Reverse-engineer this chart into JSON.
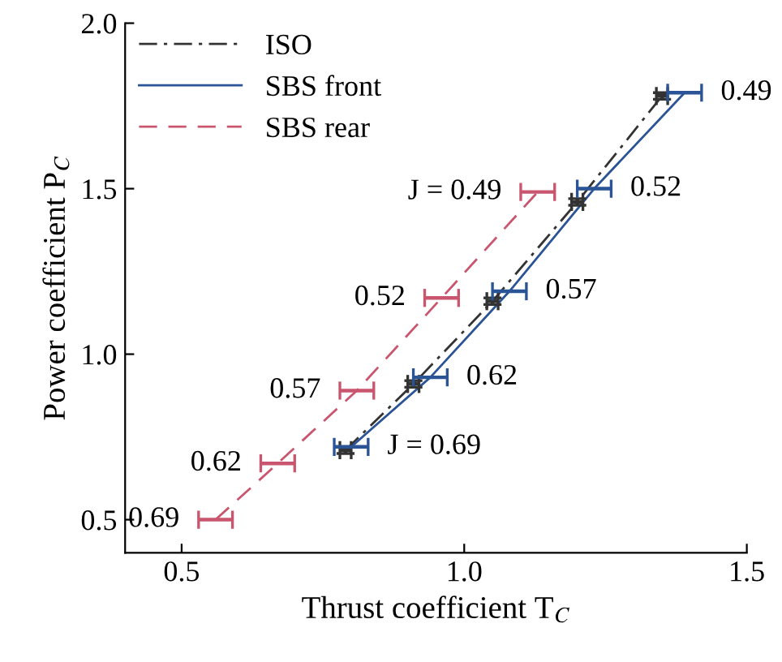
{
  "chart_data": {
    "type": "line",
    "xlabel": "Thrust coefficient T$_{C}$",
    "ylabel": "Power coefficient P$_{C}$",
    "xlim": [
      0.4,
      1.5
    ],
    "xticks": [
      {
        "value": 0.5,
        "label": "0.5"
      },
      {
        "value": 1.0,
        "label": "1.0"
      },
      {
        "value": 1.5,
        "label": "1.5"
      }
    ],
    "ylim": [
      0.4,
      2.0
    ],
    "yticks": [
      {
        "value": 0.5,
        "label": "0.5"
      },
      {
        "value": 1.0,
        "label": "1.0"
      },
      {
        "value": 1.5,
        "label": "1.5"
      },
      {
        "value": 2.0,
        "label": "2.0"
      }
    ],
    "grid": false,
    "legend": "top left",
    "marker": "none",
    "series": [
      {
        "name": "ISO",
        "color": "#333333",
        "line_style": "dashdot",
        "x": [
          0.79,
          0.91,
          1.05,
          1.2,
          1.35
        ],
        "values": [
          0.71,
          0.91,
          1.16,
          1.46,
          1.78
        ],
        "xerrors": [
          0.01,
          0.01,
          0.01,
          0.01,
          0.01
        ],
        "errors": [
          0.01,
          0.01,
          0.01,
          0.01,
          0.01
        ]
      },
      {
        "name": "SBS front",
        "color": "#2a5496",
        "line_style": "solid",
        "x": [
          0.8,
          0.94,
          1.08,
          1.23,
          1.39
        ],
        "values": [
          0.72,
          0.93,
          1.19,
          1.5,
          1.79
        ],
        "xerrors": [
          0.03,
          0.03,
          0.03,
          0.03,
          0.03
        ]
      },
      {
        "name": "SBS rear",
        "color": "#c9566e",
        "line_style": "dashed",
        "x": [
          0.56,
          0.67,
          0.81,
          0.96,
          1.13
        ],
        "values": [
          0.5,
          0.67,
          0.89,
          1.17,
          1.49
        ],
        "xerrors": [
          0.03,
          0.03,
          0.03,
          0.03,
          0.03
        ]
      }
    ],
    "annotations": [
      {
        "text": "J = 0.69",
        "x": 0.8,
        "y": 0.72
      },
      {
        "text": "0.62",
        "x": 0.94,
        "y": 0.93
      },
      {
        "text": "0.57",
        "x": 1.08,
        "y": 1.19
      },
      {
        "text": "0.52",
        "x": 1.23,
        "y": 1.5
      },
      {
        "text": "0.49",
        "x": 1.39,
        "y": 1.79
      },
      {
        "text": "0.69",
        "x": 0.56,
        "y": 0.5
      },
      {
        "text": "0.62",
        "x": 0.67,
        "y": 0.67
      },
      {
        "text": "0.57",
        "x": 0.81,
        "y": 0.89
      },
      {
        "text": "0.52",
        "x": 0.96,
        "y": 1.17
      },
      {
        "text": "J = 0.49",
        "x": 1.13,
        "y": 1.49
      }
    ]
  }
}
